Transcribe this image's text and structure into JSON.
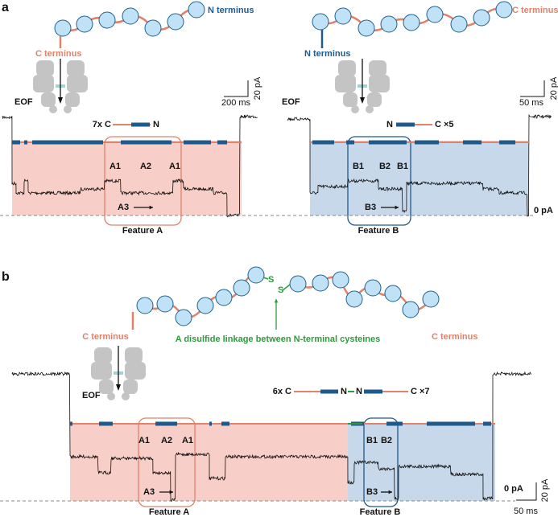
{
  "panel_a": {
    "label": "a",
    "left": {
      "terminus_top": "N terminus",
      "terminus_side": "C terminus",
      "eof": "EOF",
      "scale_current": "20 pA",
      "scale_time": "200 ms",
      "construct": [
        "7x C",
        "N"
      ],
      "events": [
        "A1",
        "A2",
        "A1"
      ],
      "sub_event": "A3",
      "feature": "Feature A"
    },
    "right": {
      "terminus_top": "C terminus",
      "terminus_side": "N terminus",
      "eof": "EOF",
      "scale_current": "20 pA",
      "scale_time": "50 ms",
      "construct": [
        "N",
        "C ×5"
      ],
      "events": [
        "B1",
        "B2",
        "B1"
      ],
      "sub_event": "B3",
      "feature": "Feature B",
      "baseline": "0 pA"
    }
  },
  "panel_b": {
    "label": "b",
    "disulfide": [
      "S",
      "S"
    ],
    "annotation": "A disulfide linkage between N-terminal cysteines",
    "terminus_left": "C terminus",
    "terminus_right": "C terminus",
    "eof": "EOF",
    "construct": [
      "6x C",
      "N",
      "N",
      "C ×7"
    ],
    "feature_a": {
      "events": [
        "A1",
        "A2",
        "A1"
      ],
      "sub_event": "A3",
      "label": "Feature A"
    },
    "feature_b": {
      "events": [
        "B1",
        "B2"
      ],
      "sub_event": "B3",
      "label": "Feature B"
    },
    "baseline": "0 pA",
    "scale_current": "20 pA",
    "scale_time": "50 ms"
  }
}
